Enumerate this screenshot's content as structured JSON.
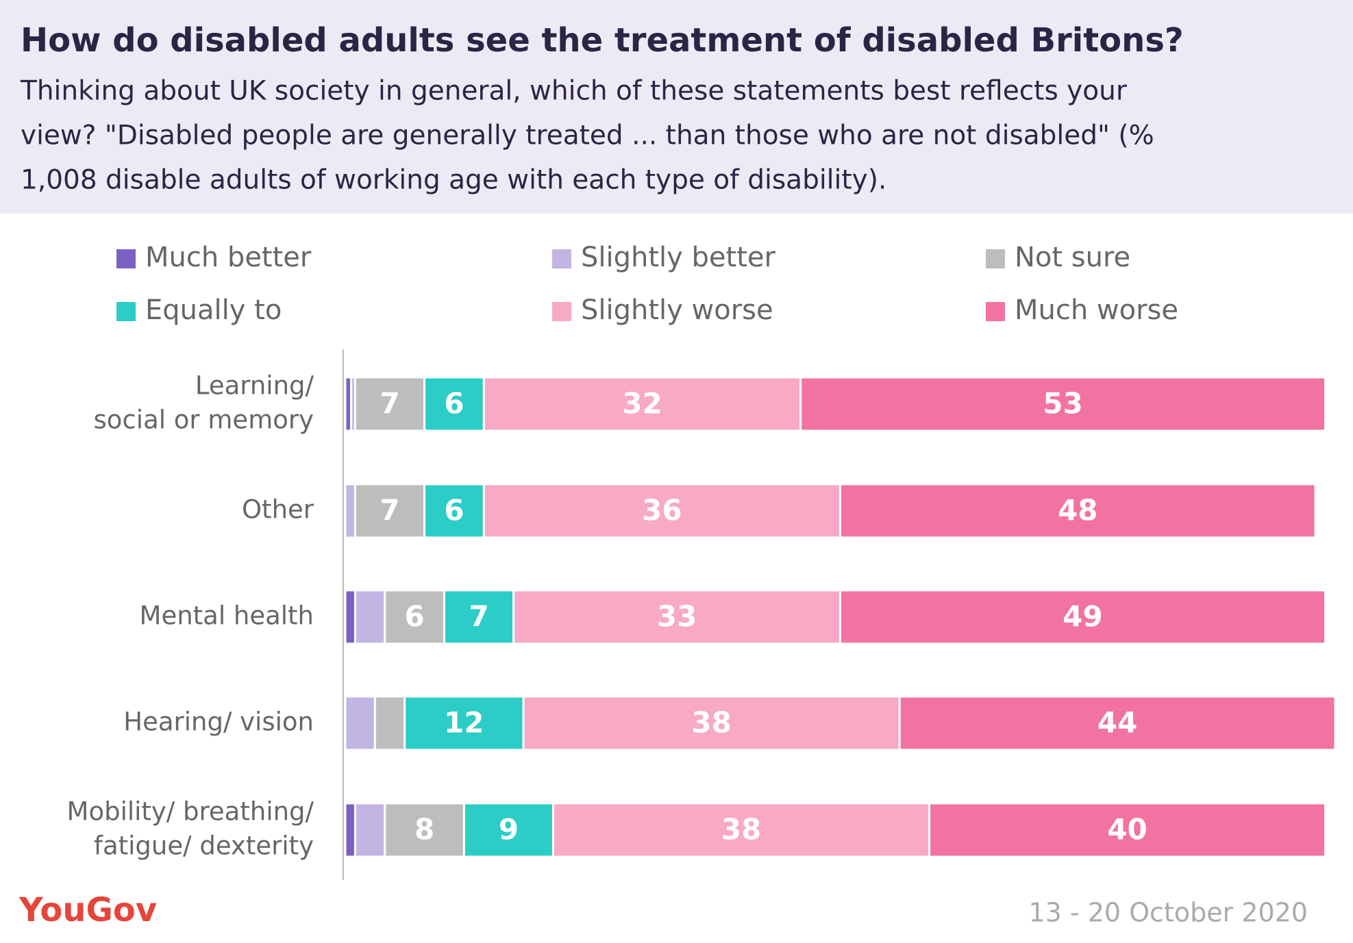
{
  "chart_data": {
    "type": "stacked-bar-horizontal",
    "title": "How do disabled adults see the treatment of disabled Britons?",
    "subtitle": [
      "Thinking about UK society in general, which of these statements best reflects your",
      "view? \"Disabled people are generally treated ... than those who are not disabled\" (%",
      "1,008 disable adults of working age with each type of disability)."
    ],
    "categories": [
      [
        "Learning/",
        "social or memory"
      ],
      [
        "Other"
      ],
      [
        "Mental health"
      ],
      [
        "Hearing/ vision"
      ],
      [
        "Mobility/ breathing/",
        "fatigue/ dexterity"
      ]
    ],
    "series": [
      {
        "name": "Much better",
        "color": "#7b61c4",
        "values": [
          0.6,
          0,
          1,
          0,
          1
        ]
      },
      {
        "name": "Slightly better",
        "color": "#c2b4e3",
        "values": [
          0.4,
          1,
          3,
          3,
          3
        ]
      },
      {
        "name": "Not sure",
        "color": "#bdbdbd",
        "values": [
          7,
          7,
          6,
          3,
          8
        ]
      },
      {
        "name": "Equally to",
        "color": "#2bcdc6",
        "values": [
          6,
          6,
          7,
          12,
          9
        ]
      },
      {
        "name": "Slightly worse",
        "color": "#f7a9c5",
        "values": [
          32,
          36,
          33,
          38,
          38
        ]
      },
      {
        "name": "Much worse",
        "color": "#f273a1",
        "values": [
          53,
          48,
          49,
          44,
          40
        ]
      }
    ],
    "xlim": [
      0,
      100
    ],
    "source": "YouGov",
    "date": "13 - 20 October 2020"
  }
}
